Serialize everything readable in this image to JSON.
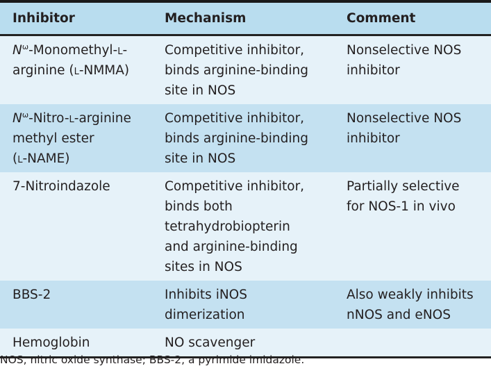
{
  "table": {
    "headers": [
      "Inhibitor",
      "Mechanism",
      "Comment"
    ],
    "rows": [
      {
        "inhibitor": [
          {
            "t": "N",
            "s": "it"
          },
          {
            "t": "ω",
            "s": "sup"
          },
          {
            "t": "-Monomethyl-"
          },
          {
            "t": "l",
            "s": "sc"
          },
          {
            "t": "-"
          },
          {
            "br": true
          },
          {
            "t": "arginine ("
          },
          {
            "t": "l",
            "s": "sc"
          },
          {
            "t": "-NMMA)"
          }
        ],
        "mechanism": [
          "Competitive inhibitor,",
          "binds arginine-binding",
          "site in NOS"
        ],
        "comment": [
          "Nonselective NOS",
          "inhibitor"
        ]
      },
      {
        "inhibitor": [
          {
            "t": "N",
            "s": "it"
          },
          {
            "t": "ω",
            "s": "sup"
          },
          {
            "t": "-Nitro-"
          },
          {
            "t": "l",
            "s": "sc"
          },
          {
            "t": "-arginine"
          },
          {
            "br": true
          },
          {
            "t": "methyl ester"
          },
          {
            "br": true
          },
          {
            "t": "("
          },
          {
            "t": "l",
            "s": "sc"
          },
          {
            "t": "-NAME)"
          }
        ],
        "mechanism": [
          "Competitive inhibitor,",
          "binds arginine-binding",
          "site in NOS"
        ],
        "comment": [
          "Nonselective NOS",
          "inhibitor"
        ]
      },
      {
        "inhibitor": [
          {
            "t": "7-Nitroindazole"
          }
        ],
        "mechanism": [
          "Competitive inhibitor,",
          "binds both",
          "tetrahydrobiopterin",
          "and arginine-binding",
          "sites in NOS"
        ],
        "comment": [
          "Partially selective",
          "for NOS-1 in vivo"
        ]
      },
      {
        "inhibitor": [
          {
            "t": "BBS-2"
          }
        ],
        "mechanism": [
          "Inhibits iNOS",
          "dimerization"
        ],
        "comment": [
          "Also weakly inhibits",
          "nNOS and eNOS"
        ]
      },
      {
        "inhibitor": [
          {
            "t": "Hemoglobin"
          }
        ],
        "mechanism": [
          "NO scavenger"
        ],
        "comment": []
      }
    ]
  },
  "footnote": "NOS, nitric oxide synthase; BBS-2, a pyrimide imidazole."
}
